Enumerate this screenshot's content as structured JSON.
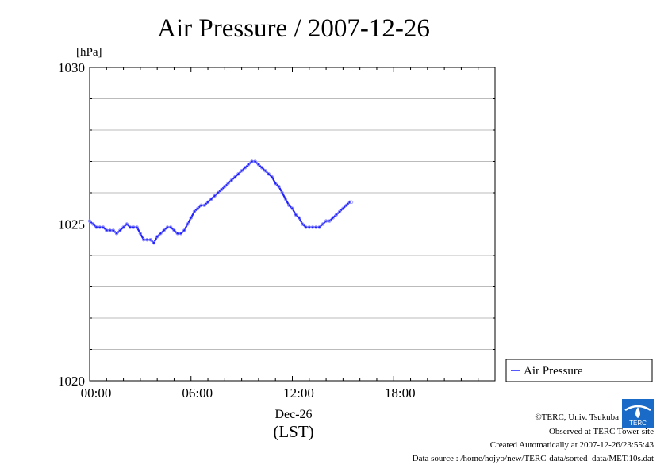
{
  "chart_data": {
    "type": "line",
    "title": "Air Pressure / 2007-12-26",
    "ylabel": "[hPa]",
    "xlabel_date": "Dec-26",
    "xlabel_tz": "(LST)",
    "x_unit": "hours",
    "xlim": [
      0,
      24
    ],
    "ylim": [
      1020,
      1030
    ],
    "x_ticks": [
      {
        "value": 0,
        "label": "00:00"
      },
      {
        "value": 6,
        "label": "06:00"
      },
      {
        "value": 12,
        "label": "12:00"
      },
      {
        "value": 18,
        "label": "18:00"
      }
    ],
    "y_ticks": [
      {
        "value": 1020,
        "label": "1020"
      },
      {
        "value": 1025,
        "label": "1025"
      },
      {
        "value": 1030,
        "label": "1030"
      }
    ],
    "grid": true,
    "legend_position": "bottom-right, outside plot",
    "series": [
      {
        "name": "Air Pressure",
        "color": "#2020ff",
        "x": [
          0.0,
          0.2,
          0.4,
          0.6,
          0.8,
          1.0,
          1.2,
          1.4,
          1.6,
          1.8,
          2.0,
          2.2,
          2.4,
          2.6,
          2.8,
          3.0,
          3.2,
          3.4,
          3.6,
          3.8,
          4.0,
          4.2,
          4.4,
          4.6,
          4.8,
          5.0,
          5.2,
          5.4,
          5.6,
          5.8,
          6.0,
          6.2,
          6.4,
          6.6,
          6.8,
          7.0,
          7.2,
          7.4,
          7.6,
          7.8,
          8.0,
          8.2,
          8.4,
          8.6,
          8.8,
          9.0,
          9.2,
          9.4,
          9.6,
          9.8,
          10.0,
          10.2,
          10.4,
          10.6,
          10.8,
          11.0,
          11.2,
          11.4,
          11.6,
          11.8,
          12.0,
          12.2,
          12.4,
          12.6,
          12.8,
          13.0,
          13.2,
          13.4,
          13.6,
          13.8,
          14.0,
          14.2,
          14.4,
          14.6,
          14.8,
          15.0,
          15.2,
          15.4,
          15.5
        ],
        "y": [
          1025.1,
          1025.0,
          1024.9,
          1024.9,
          1024.9,
          1024.8,
          1024.8,
          1024.8,
          1024.7,
          1024.8,
          1024.9,
          1025.0,
          1024.9,
          1024.9,
          1024.9,
          1024.7,
          1024.5,
          1024.5,
          1024.5,
          1024.4,
          1024.6,
          1024.7,
          1024.8,
          1024.9,
          1024.9,
          1024.8,
          1024.7,
          1024.7,
          1024.8,
          1025.0,
          1025.2,
          1025.4,
          1025.5,
          1025.6,
          1025.6,
          1025.7,
          1025.8,
          1025.9,
          1026.0,
          1026.1,
          1026.2,
          1026.3,
          1026.4,
          1026.5,
          1026.6,
          1026.7,
          1026.8,
          1026.9,
          1027.0,
          1027.0,
          1026.9,
          1026.8,
          1026.7,
          1026.6,
          1026.5,
          1026.3,
          1026.2,
          1026.0,
          1025.8,
          1025.6,
          1025.5,
          1025.3,
          1025.2,
          1025.0,
          1024.9,
          1024.9,
          1024.9,
          1024.9,
          1024.9,
          1025.0,
          1025.1,
          1025.1,
          1025.2,
          1025.3,
          1025.4,
          1025.5,
          1025.6,
          1025.7,
          1025.7
        ]
      }
    ]
  },
  "footer": {
    "copyright": "©TERC, Univ. Tsukuba",
    "observed": "Observed at TERC Tower site",
    "created": "Created Automatically at 2007-12-26/23:55:43",
    "source": "Data source : /home/hojyo/new/TERC-data/sorted_data/MET.10s.dat",
    "logo_text": "TERC"
  }
}
